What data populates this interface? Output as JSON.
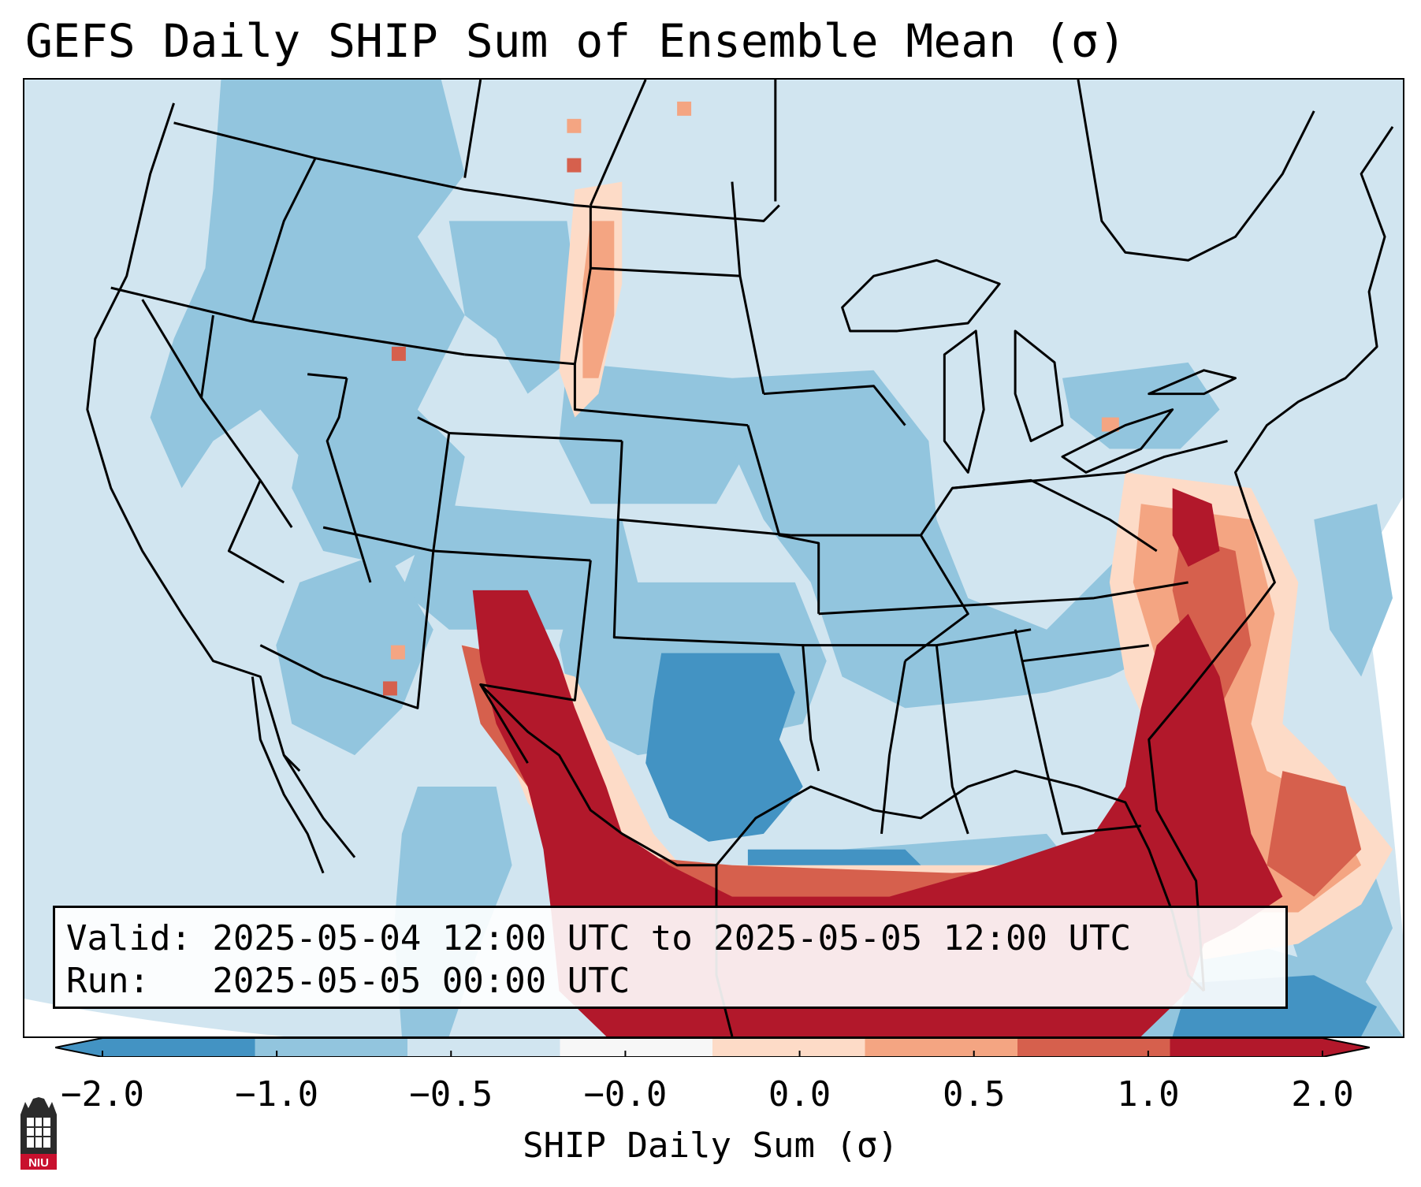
{
  "title": "GEFS Daily SHIP Sum of Ensemble Mean (σ)",
  "info": {
    "valid_line": "Valid: 2025-05-04 12:00 UTC to 2025-05-05 12:00 UTC",
    "run_line": "Run:   2025-05-05 00:00 UTC"
  },
  "colorbar": {
    "label": "SHIP Daily Sum (σ)",
    "ticks": [
      "−2.0",
      "−1.0",
      "−0.5",
      "−0.0",
      "0.0",
      "0.5",
      "1.0",
      "2.0"
    ],
    "colors": [
      "#4393c3",
      "#92c5de",
      "#d1e5f0",
      "#f7f7f7",
      "#fddbc7",
      "#f4a582",
      "#d6604d",
      "#b2182b"
    ],
    "extend": "both"
  },
  "logo": {
    "text": "NIU",
    "icon": "university-tower-logo"
  },
  "map": {
    "projection": "conus-lambert",
    "field": "SHIP daily sum of ensemble mean",
    "notable_regions": [
      {
        "area": "Southeast US coast and Florida",
        "level": "2.0"
      },
      {
        "area": "Western Gulf and south Texas",
        "level": "2.0"
      },
      {
        "area": "Central and east Texas",
        "level": "-1.0"
      },
      {
        "area": "Northern Gulf offshore",
        "level": "-1.0"
      }
    ]
  }
}
